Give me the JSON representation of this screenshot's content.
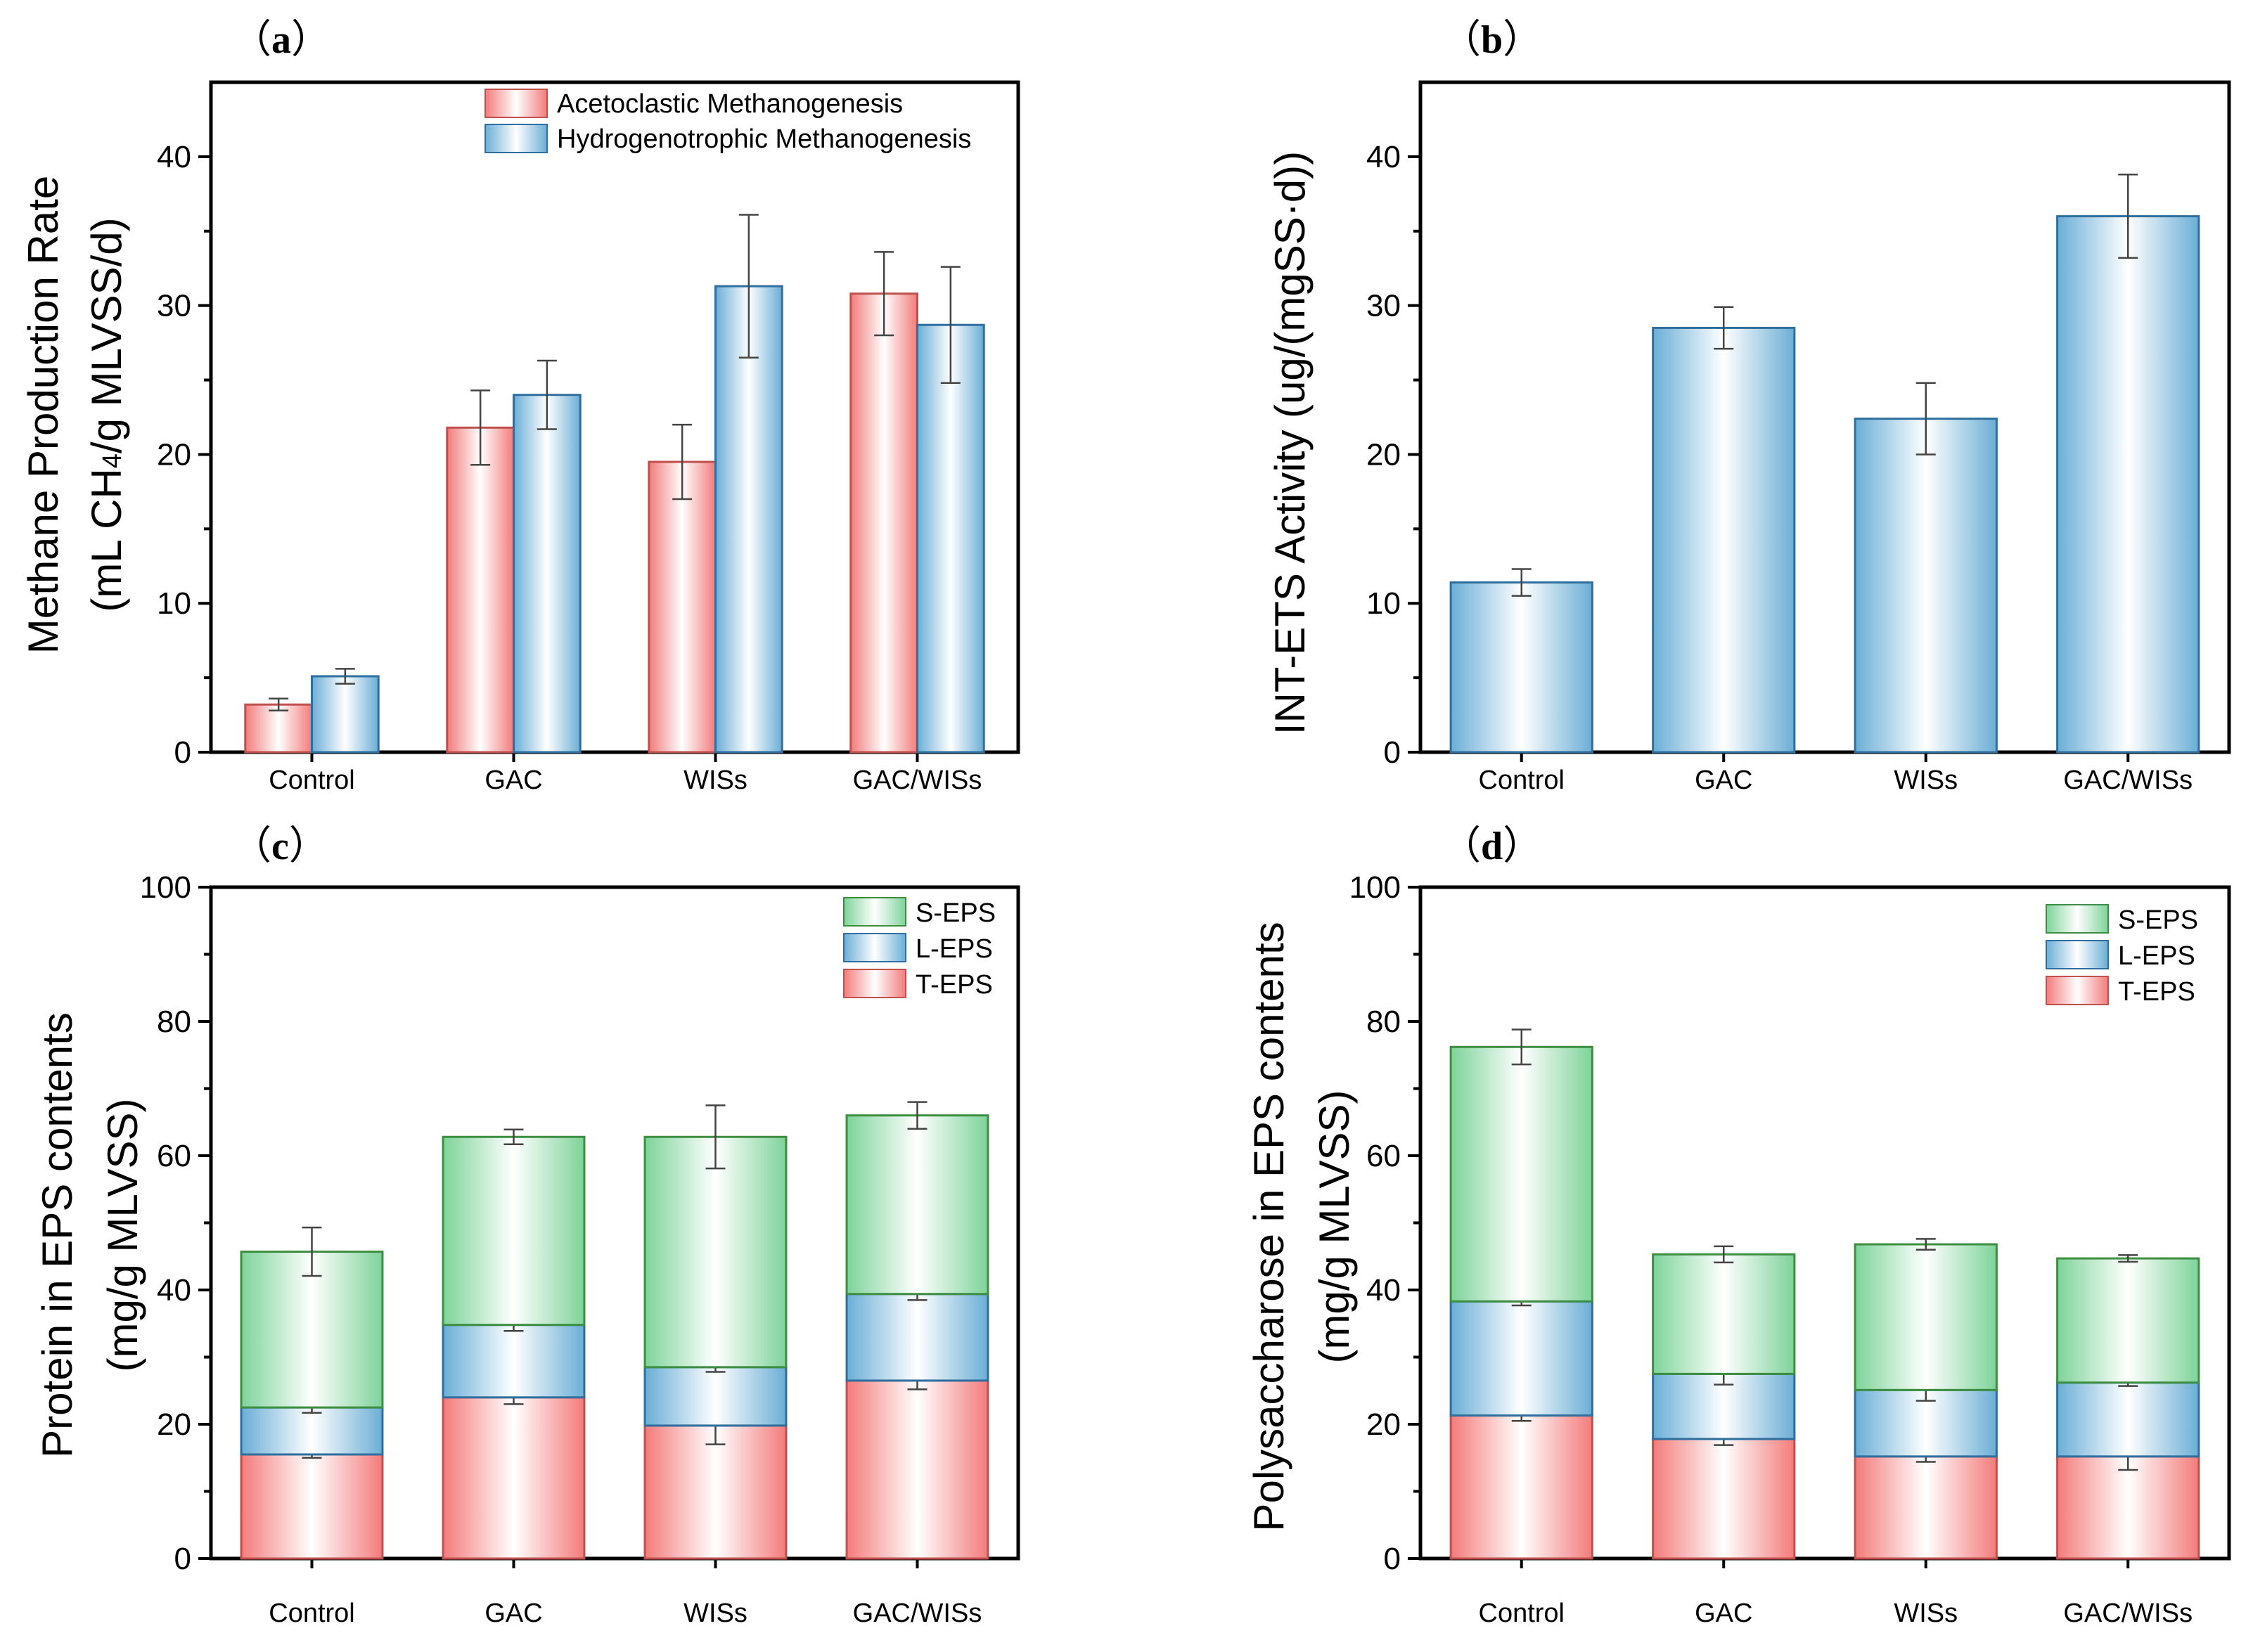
{
  "colors": {
    "red_edge": "#f37b7b",
    "red_stroke": "#c0504d",
    "blue_edge": "#6baed6",
    "blue_stroke": "#2f6f9f",
    "green_edge": "#7ed39a",
    "green_stroke": "#3e8e41"
  },
  "chart_data": [
    {
      "panel": "a",
      "panel_label_open": "（",
      "panel_letter": "a",
      "panel_label_close": "）",
      "type": "bar",
      "categories": [
        "Control",
        "GAC",
        "WISs",
        "GAC/WISs"
      ],
      "series": [
        {
          "name": "Acetoclastic Methanogenesis",
          "color": "red",
          "values": [
            3.2,
            21.8,
            19.5,
            30.8
          ],
          "errors": [
            0.4,
            2.5,
            2.5,
            2.8
          ]
        },
        {
          "name": "Hydrogenotrophic Methanogenesis",
          "color": "blue",
          "values": [
            5.1,
            24.0,
            31.3,
            28.7
          ],
          "errors": [
            0.5,
            2.3,
            4.8,
            3.9
          ]
        }
      ],
      "ylabel_line1": "Methane Production Rate",
      "ylabel_line2_pre": "(mL CH",
      "ylabel_line2_sub": "4",
      "ylabel_line2_post": "/g MLVSS/d)",
      "ylim": [
        0,
        45
      ],
      "yticks": [
        0,
        10,
        20,
        30,
        40
      ]
    },
    {
      "panel": "b",
      "panel_label_open": "（",
      "panel_letter": "b",
      "panel_label_close": "）",
      "type": "bar",
      "categories": [
        "Control",
        "GAC",
        "WISs",
        "GAC/WISs"
      ],
      "series": [
        {
          "name": "INT-ETS Activity",
          "color": "blue",
          "values": [
            11.4,
            28.5,
            22.4,
            36.0
          ],
          "errors": [
            0.9,
            1.4,
            2.4,
            2.8
          ]
        }
      ],
      "ylabel": "INT-ETS Activity (ug/(mgSS·d))",
      "ylim": [
        0,
        45
      ],
      "yticks": [
        0,
        10,
        20,
        30,
        40
      ]
    },
    {
      "panel": "c",
      "panel_label_open": "（",
      "panel_letter": "c",
      "panel_label_close": "）",
      "type": "stacked_bar",
      "categories": [
        "Control",
        "GAC",
        "WISs",
        "GAC/WISs"
      ],
      "series": [
        {
          "name": "T-EPS",
          "color": "red",
          "values": [
            15.5,
            24.0,
            19.8,
            26.5
          ],
          "errors": [
            0.5,
            1.0,
            2.8,
            1.3
          ]
        },
        {
          "name": "L-EPS",
          "color": "blue",
          "values": [
            7.0,
            10.8,
            8.7,
            12.9
          ],
          "errors": [
            0.8,
            0.9,
            0.7,
            0.9
          ]
        },
        {
          "name": "S-EPS",
          "color": "green",
          "values": [
            23.2,
            28.0,
            34.3,
            26.6
          ],
          "errors": [
            3.6,
            1.1,
            4.7,
            2.0
          ]
        }
      ],
      "legend_order": [
        "S-EPS",
        "L-EPS",
        "T-EPS"
      ],
      "ylabel_line1": "Protein in EPS contents",
      "ylabel_line2": "(mg/g MLVSS)",
      "ylim": [
        0,
        100
      ],
      "yticks": [
        0,
        20,
        40,
        60,
        80,
        100
      ]
    },
    {
      "panel": "d",
      "panel_label_open": "（",
      "panel_letter": "d",
      "panel_label_close": "）",
      "type": "stacked_bar",
      "categories": [
        "Control",
        "GAC",
        "WISs",
        "GAC/WISs"
      ],
      "series": [
        {
          "name": "T-EPS",
          "color": "red",
          "values": [
            21.3,
            17.8,
            15.2,
            15.2
          ],
          "errors": [
            0.8,
            0.9,
            0.8,
            2.0
          ]
        },
        {
          "name": "L-EPS",
          "color": "blue",
          "values": [
            17.0,
            9.7,
            9.9,
            11.0
          ],
          "errors": [
            0.6,
            1.6,
            1.6,
            0.5
          ]
        },
        {
          "name": "S-EPS",
          "color": "green",
          "values": [
            37.9,
            17.8,
            21.7,
            18.5
          ],
          "errors": [
            2.6,
            1.2,
            0.8,
            0.5
          ]
        }
      ],
      "legend_order": [
        "S-EPS",
        "L-EPS",
        "T-EPS"
      ],
      "ylabel_line1": "Polysaccharose in EPS contents",
      "ylabel_line2": "(mg/g MLVSS)",
      "ylim": [
        0,
        100
      ],
      "yticks": [
        0,
        20,
        40,
        60,
        80,
        100
      ]
    }
  ]
}
